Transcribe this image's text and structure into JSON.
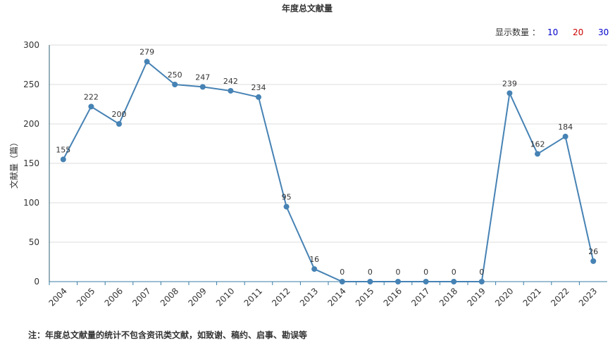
{
  "chart_data": {
    "type": "line",
    "title": "年度总文献量",
    "y_label": "文献量（篇）",
    "categories": [
      "2004",
      "2005",
      "2006",
      "2007",
      "2008",
      "2009",
      "2010",
      "2011",
      "2012",
      "2013",
      "2014",
      "2015",
      "2016",
      "2017",
      "2018",
      "2019",
      "2020",
      "2021",
      "2022",
      "2023"
    ],
    "values": [
      155,
      222,
      200,
      279,
      250,
      247,
      242,
      234,
      95,
      16,
      0,
      0,
      0,
      0,
      0,
      0,
      239,
      162,
      184,
      26
    ],
    "color": "#4682b4",
    "ylim": [
      0,
      300
    ],
    "yticks": [
      0,
      50,
      100,
      150,
      200,
      250,
      300
    ],
    "grid": true
  },
  "controls": {
    "label": "显示数量 ：",
    "options": [
      {
        "text": "10",
        "color": "#0000cc"
      },
      {
        "text": "20",
        "color": "#cc0000"
      },
      {
        "text": "30",
        "color": "#0000cc"
      }
    ]
  },
  "note": "注：年度总文献量的统计不包含资讯类文献，如致谢、稿约、启事、勘误等"
}
